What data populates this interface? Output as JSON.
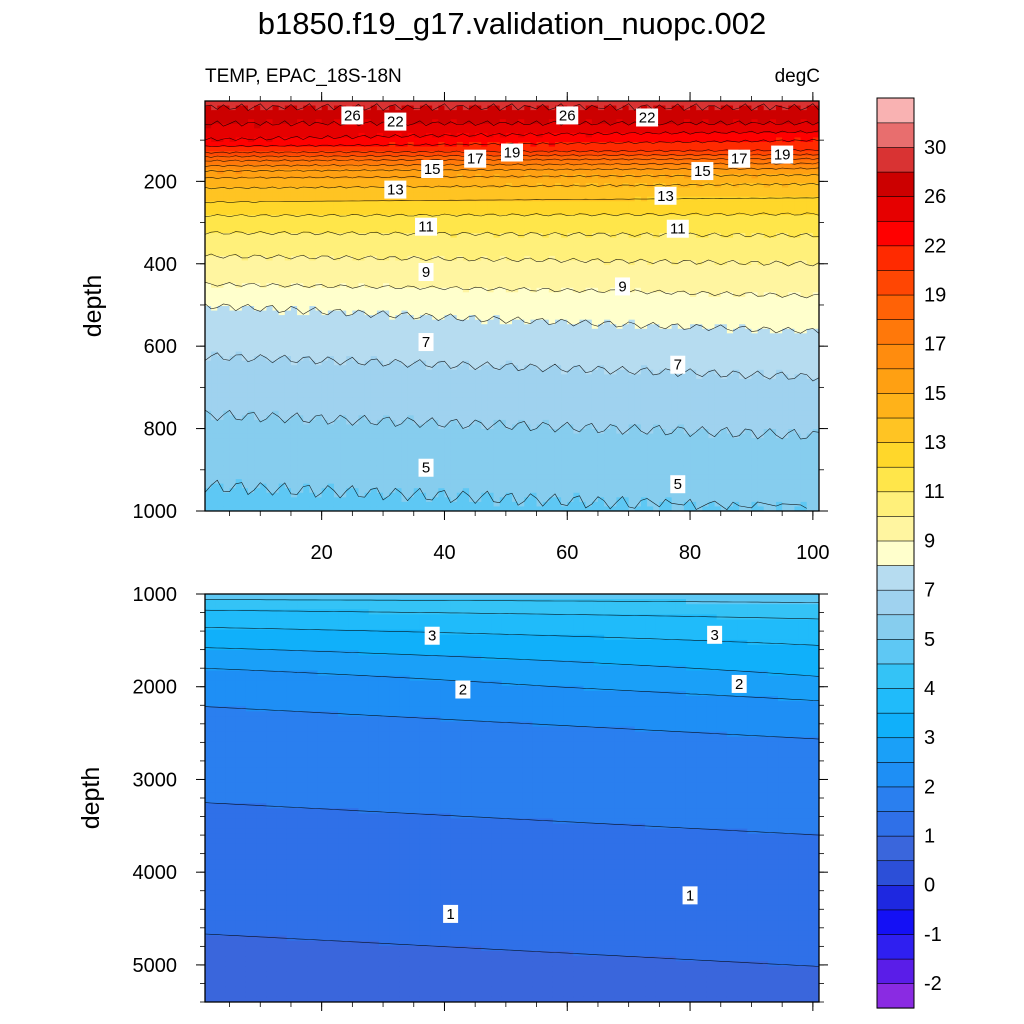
{
  "chart_data": [
    {
      "type": "contour",
      "panel": "upper",
      "title": "b1850.f19_g17.validation_nuopc.002",
      "left_string": "TEMP, EPAC_18S-18N",
      "right_string": "degC",
      "ylabel": "depth",
      "xlabel": "",
      "xlim": [
        1,
        101
      ],
      "ylim": [
        1000,
        5
      ],
      "x_ticks": [
        20,
        40,
        60,
        80,
        100
      ],
      "y_ticks": [
        200,
        400,
        600,
        800,
        1000
      ],
      "contour_labels": [
        {
          "text": "26",
          "x": 25,
          "y": 40
        },
        {
          "text": "22",
          "x": 32,
          "y": 55
        },
        {
          "text": "26",
          "x": 60,
          "y": 40
        },
        {
          "text": "22",
          "x": 73,
          "y": 45
        },
        {
          "text": "19",
          "x": 51,
          "y": 130
        },
        {
          "text": "17",
          "x": 45,
          "y": 145
        },
        {
          "text": "15",
          "x": 38,
          "y": 170
        },
        {
          "text": "13",
          "x": 32,
          "y": 220
        },
        {
          "text": "17",
          "x": 88,
          "y": 145
        },
        {
          "text": "19",
          "x": 95,
          "y": 135
        },
        {
          "text": "15",
          "x": 82,
          "y": 175
        },
        {
          "text": "13",
          "x": 76,
          "y": 235
        },
        {
          "text": "11",
          "x": 37,
          "y": 310
        },
        {
          "text": "11",
          "x": 78,
          "y": 315
        },
        {
          "text": "9",
          "x": 37,
          "y": 420
        },
        {
          "text": "9",
          "x": 69,
          "y": 455
        },
        {
          "text": "7",
          "x": 37,
          "y": 590
        },
        {
          "text": "7",
          "x": 78,
          "y": 645
        },
        {
          "text": "5",
          "x": 37,
          "y": 895
        },
        {
          "text": "5",
          "x": 78,
          "y": 935
        }
      ]
    },
    {
      "type": "contour",
      "panel": "lower",
      "ylabel": "depth",
      "xlim": [
        1,
        101
      ],
      "ylim": [
        5400,
        1000
      ],
      "y_ticks": [
        1000,
        2000,
        3000,
        4000,
        5000
      ],
      "contour_labels": [
        {
          "text": "3",
          "x": 38,
          "y": 1450
        },
        {
          "text": "3",
          "x": 84,
          "y": 1440
        },
        {
          "text": "2",
          "x": 43,
          "y": 2030
        },
        {
          "text": "2",
          "x": 88,
          "y": 1970
        },
        {
          "text": "1",
          "x": 41,
          "y": 4450
        },
        {
          "text": "1",
          "x": 80,
          "y": 4250
        }
      ]
    }
  ],
  "colorbar": {
    "levels": [
      -2.5,
      -2,
      -1.5,
      -1,
      -0.5,
      0,
      0.5,
      1,
      1.5,
      2,
      2.5,
      3,
      3.5,
      4,
      4.5,
      5,
      6,
      7,
      8,
      9,
      10,
      11,
      12,
      13,
      14,
      15,
      16,
      17,
      18,
      19,
      20,
      22,
      24,
      26,
      28,
      30,
      32
    ],
    "tick_labels": [
      "30",
      "26",
      "22",
      "19",
      "17",
      "15",
      "13",
      "11",
      "9",
      "7",
      "5",
      "4",
      "3",
      "2",
      "1",
      "0",
      "-1",
      "-2"
    ],
    "colors": [
      "#8a2be2",
      "#5a1de8",
      "#2f1ff0",
      "#1410f5",
      "#1e28e0",
      "#2c4fd8",
      "#3a66dc",
      "#2f70e8",
      "#2a7fef",
      "#1e8ff5",
      "#1aa0f8",
      "#10b0fa",
      "#20bbfa",
      "#34c3f6",
      "#5ec8f4",
      "#86cdee",
      "#9fd2ef",
      "#b6dcf0",
      "#ffffcc",
      "#fff5a0",
      "#fff07a",
      "#ffe64a",
      "#ffd72a",
      "#ffc423",
      "#ffb219",
      "#ffa012",
      "#ff8c0e",
      "#ff780a",
      "#ff6206",
      "#ff4603",
      "#ff2a00",
      "#ff0000",
      "#e60000",
      "#cc0000",
      "#d93333",
      "#e86e6e",
      "#f9b2b2"
    ]
  }
}
